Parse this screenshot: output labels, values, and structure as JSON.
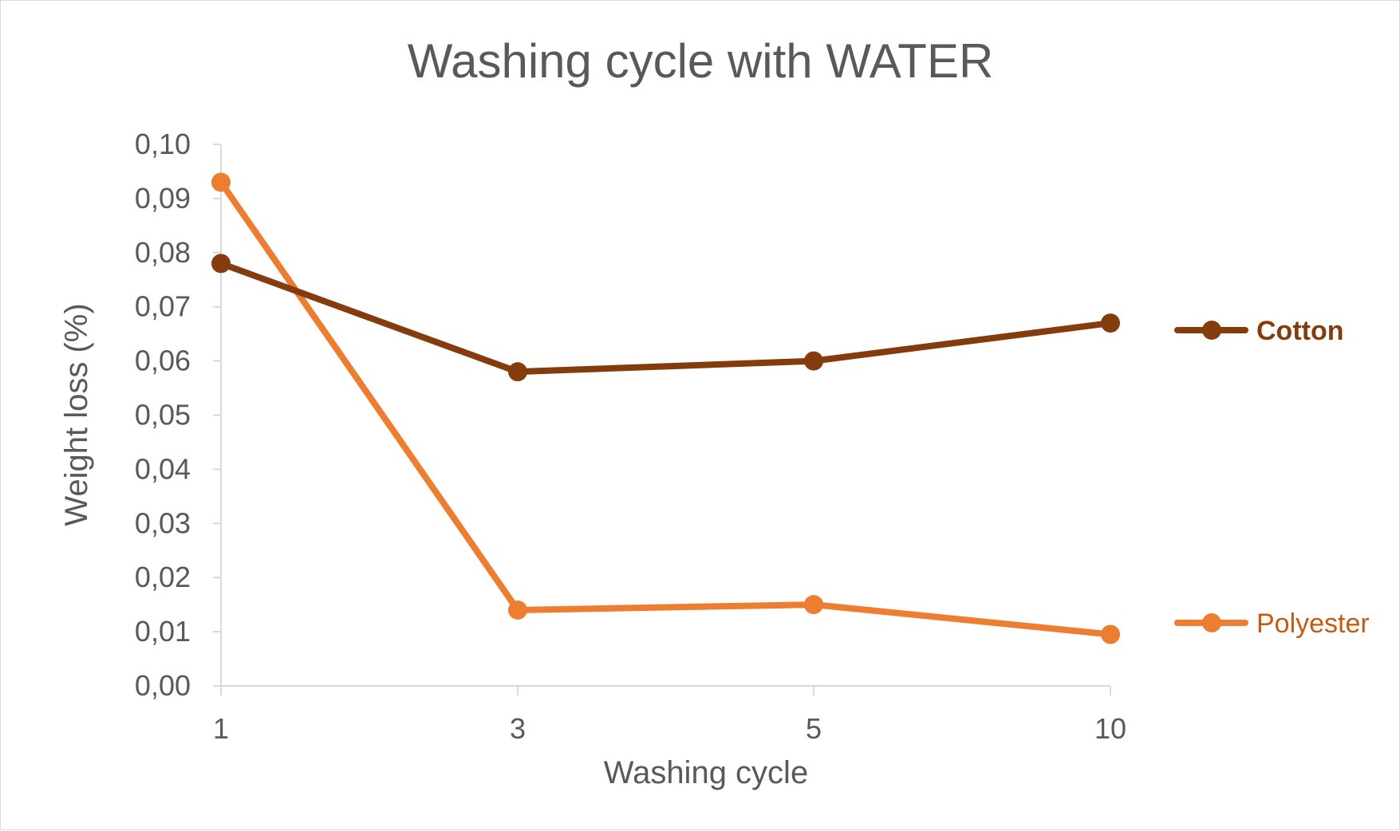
{
  "chart_data": {
    "type": "line",
    "title": "Washing cycle with WATER",
    "xlabel": "Washing cycle",
    "ylabel": "Weight loss (%)",
    "categories": [
      "1",
      "3",
      "5",
      "10"
    ],
    "ylim": [
      0,
      0.1
    ],
    "yticks": [
      0.0,
      0.01,
      0.02,
      0.03,
      0.04,
      0.05,
      0.06,
      0.07,
      0.08,
      0.09,
      0.1
    ],
    "ytick_labels": [
      "0,00",
      "0,01",
      "0,02",
      "0,03",
      "0,04",
      "0,05",
      "0,06",
      "0,07",
      "0,08",
      "0,09",
      "0,10"
    ],
    "grid": false,
    "legend_placement": "right (series labels next to line ends)",
    "series": [
      {
        "name": "Cotton",
        "values": [
          0.078,
          0.058,
          0.06,
          0.067
        ],
        "color": "#843c0c",
        "label_bold": true
      },
      {
        "name": "Polyester",
        "values": [
          0.093,
          0.014,
          0.015,
          0.0095
        ],
        "color": "#ed7d31",
        "label_color": "#c55a11",
        "label_bold": false
      }
    ]
  }
}
